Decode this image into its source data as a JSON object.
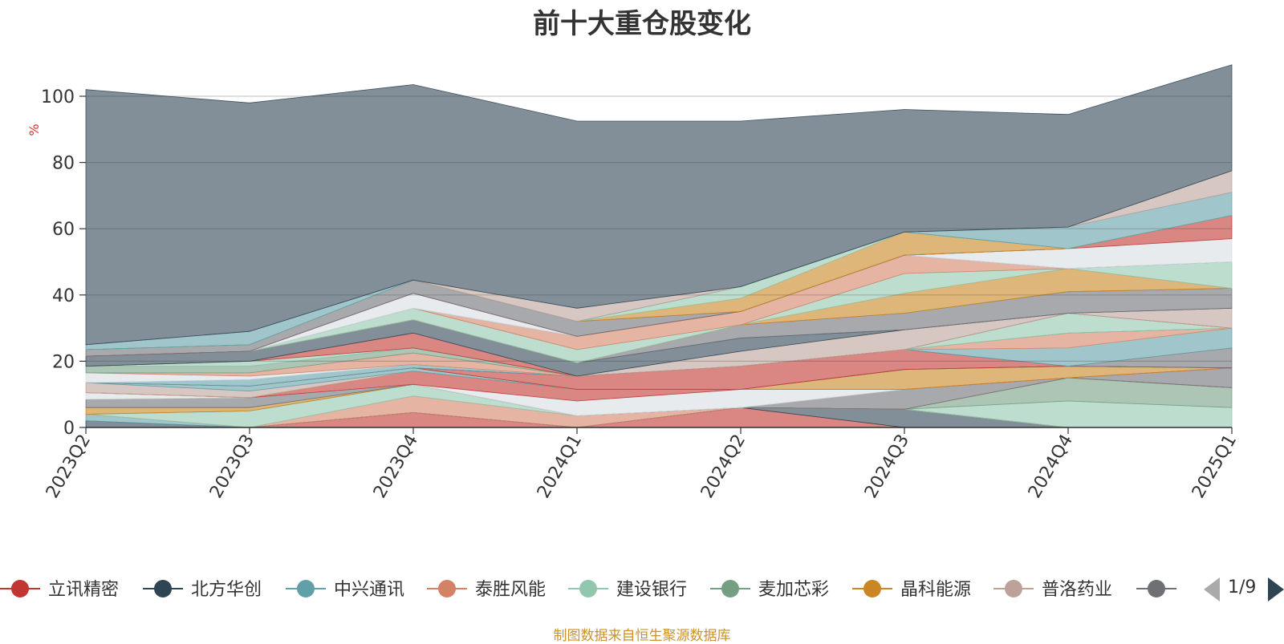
{
  "chart_data": {
    "type": "area",
    "title": "前十大重仓股变化",
    "ylabel": "%",
    "ylim": [
      0,
      100
    ],
    "yticks": [
      "0",
      "20",
      "40",
      "60",
      "80",
      "100"
    ],
    "categories": [
      "2023Q2",
      "2023Q3",
      "2023Q4",
      "2024Q1",
      "2024Q2",
      "2024Q3",
      "2024Q4",
      "2025Q1"
    ],
    "grid": true,
    "legend_position": "bottom",
    "series": [
      {
        "name": "立讯精密",
        "color": "#c23531",
        "values": [
          0,
          0,
          4.5,
          0,
          6,
          0,
          0,
          0
        ]
      },
      {
        "name": "北方华创",
        "color": "#2f4554",
        "values": [
          2,
          0,
          0,
          0,
          0,
          5.5,
          0,
          0
        ]
      },
      {
        "name": "中兴通讯",
        "color": "#61a0a8",
        "values": [
          2,
          0,
          0,
          0,
          0,
          0,
          0,
          0
        ]
      },
      {
        "name": "泰胜风能",
        "color": "#d48265",
        "values": [
          0,
          0,
          5,
          3.5,
          0,
          0,
          0,
          0
        ]
      },
      {
        "name": "建设银行",
        "color": "#91c7ae",
        "values": [
          0,
          5,
          3.5,
          0,
          0,
          0,
          8,
          6
        ]
      },
      {
        "name": "麦加芯彩",
        "color": "#749f83",
        "values": [
          0,
          0,
          0,
          0,
          0,
          0,
          7,
          6
        ]
      },
      {
        "name": "晶科能源",
        "color": "#ca8622",
        "values": [
          2,
          1,
          0,
          0,
          0,
          0,
          0,
          0
        ]
      },
      {
        "name": "普洛药业",
        "color": "#bda29a",
        "values": [
          0,
          0,
          0,
          0,
          0,
          0,
          0,
          0
        ]
      },
      {
        "name": "",
        "color": "#6e7074",
        "values": [
          2.5,
          3,
          0,
          0,
          0,
          6,
          0,
          6
        ]
      }
    ],
    "other_series": [
      {
        "color": "#d7dde3",
        "values": [
          2,
          0,
          0,
          4.5,
          5.5,
          0,
          0,
          0
        ]
      },
      {
        "color": "#c23531",
        "values": [
          0,
          0,
          4,
          3.5,
          0,
          0,
          0,
          0
        ]
      },
      {
        "color": "#ca8622",
        "values": [
          0,
          0,
          0,
          0,
          0,
          6,
          3.5,
          0
        ]
      },
      {
        "color": "#bda29a",
        "values": [
          3,
          2,
          0,
          0,
          0,
          0,
          0,
          0
        ]
      },
      {
        "color": "#61a0a8",
        "values": [
          0,
          1.5,
          1,
          0,
          0,
          0,
          0,
          0
        ]
      },
      {
        "color": "#c23531",
        "values": [
          0,
          0,
          0,
          4,
          7,
          6,
          0,
          0
        ]
      },
      {
        "color": "#6e7074",
        "values": [
          0,
          0,
          0,
          0,
          0,
          0,
          0,
          6
        ]
      },
      {
        "color": "#61a0a8",
        "values": [
          0,
          2,
          1,
          0,
          0,
          0,
          5.5,
          6
        ]
      },
      {
        "color": "#d7dde3",
        "values": [
          3,
          1,
          0,
          0,
          0,
          0,
          0,
          0
        ]
      },
      {
        "color": "#d48265",
        "values": [
          0,
          1,
          3.5,
          0,
          0,
          0,
          4.5,
          0
        ]
      },
      {
        "color": "#749f83",
        "values": [
          2,
          2,
          1.5,
          0,
          0,
          0,
          0,
          0
        ]
      },
      {
        "color": "#91c7ae",
        "values": [
          0,
          1.5,
          0,
          0,
          0,
          0,
          6,
          0
        ]
      },
      {
        "color": "#c23531",
        "values": [
          0,
          0,
          4.5,
          0,
          0,
          0,
          0,
          0
        ]
      },
      {
        "color": "#bda29a",
        "values": [
          0,
          0,
          0,
          0,
          4.5,
          6,
          0,
          6
        ]
      },
      {
        "color": "#2f4554",
        "values": [
          3,
          3,
          4,
          4,
          4,
          0,
          0,
          0
        ]
      },
      {
        "color": "#6e7074",
        "values": [
          0,
          0,
          0,
          0,
          4,
          5,
          6.5,
          6
        ]
      },
      {
        "color": "#ca8622",
        "values": [
          0,
          0,
          0,
          0,
          0,
          6,
          7,
          0
        ]
      },
      {
        "color": "#91c7ae",
        "values": [
          0,
          0,
          3.5,
          4,
          0,
          6,
          0,
          8
        ]
      },
      {
        "color": "#d48265",
        "values": [
          0,
          0,
          0,
          4,
          4,
          5.5,
          0,
          0
        ]
      },
      {
        "color": "#61a0a8",
        "values": [
          0,
          0,
          0,
          0,
          0,
          0,
          0,
          0
        ]
      },
      {
        "color": "#d7dde3",
        "values": [
          0,
          0,
          4.5,
          0,
          0,
          0,
          6,
          7
        ]
      },
      {
        "color": "#c23531",
        "values": [
          0,
          0,
          0,
          0,
          0,
          0,
          0,
          7
        ]
      },
      {
        "color": "#6e7074",
        "values": [
          2,
          2,
          4,
          4.5,
          0,
          0,
          0,
          0
        ]
      },
      {
        "color": "#ca8622",
        "values": [
          0,
          0,
          0,
          0,
          4,
          7,
          0,
          0
        ]
      },
      {
        "color": "#91c7ae",
        "values": [
          0,
          0,
          0,
          0,
          3.5,
          0,
          0,
          0
        ]
      },
      {
        "color": "#61a0a8",
        "values": [
          1.5,
          4,
          0,
          0,
          0,
          0,
          6.5,
          7
        ]
      },
      {
        "color": "#bda29a",
        "values": [
          0,
          0,
          0,
          4,
          0,
          0,
          0,
          6.5
        ]
      },
      {
        "color": "#2f4554",
        "values": [
          77,
          69,
          59,
          56.5,
          50,
          37,
          34,
          32
        ]
      }
    ]
  },
  "legend": {
    "items": [
      {
        "name": "立讯精密",
        "color": "#c23531"
      },
      {
        "name": "北方华创",
        "color": "#2f4554"
      },
      {
        "name": "中兴通讯",
        "color": "#61a0a8"
      },
      {
        "name": "泰胜风能",
        "color": "#d48265"
      },
      {
        "name": "建设银行",
        "color": "#91c7ae"
      },
      {
        "name": "麦加芯彩",
        "color": "#749f83"
      },
      {
        "name": "晶科能源",
        "color": "#ca8622"
      },
      {
        "name": "普洛药业",
        "color": "#bda29a"
      },
      {
        "name": "",
        "color": "#6e7074"
      }
    ],
    "page_label": "1/9"
  },
  "footer": {
    "note": "制图数据来自恒生聚源数据库"
  }
}
